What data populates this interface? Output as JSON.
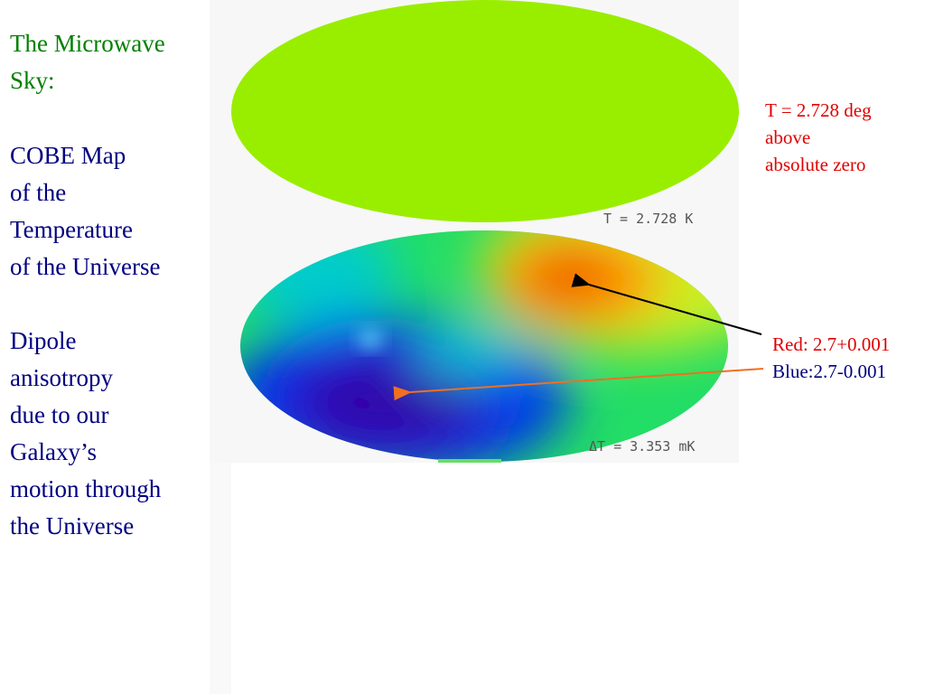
{
  "slide": {
    "left_text": {
      "heading": [
        "The Microwave",
        "Sky:"
      ],
      "subtitle": [
        "COBE Map",
        "of the",
        "Temperature",
        "of the Universe"
      ],
      "explanation": [
        "Dipole",
        "anisotropy",
        "due to our",
        "Galaxy’s",
        "motion through",
        "the Universe"
      ]
    },
    "image_labels": {
      "top_map": "T = 2.728 K",
      "bottom_map": "ΔT = 3.353 mK"
    },
    "annotations": {
      "temperature": [
        "T = 2.728 deg",
        "above",
        "absolute zero"
      ],
      "red": "Red: 2.7+0.001",
      "blue": "Blue:2.7-0.001"
    }
  }
}
